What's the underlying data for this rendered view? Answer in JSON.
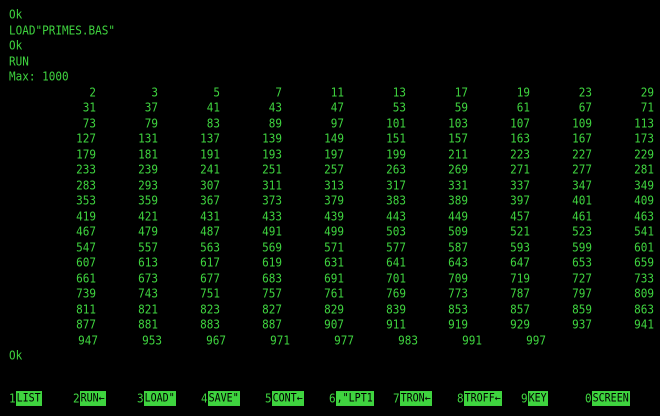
{
  "session": {
    "lines_before": [
      "Ok",
      "LOAD\"PRIMES.BAS\"",
      "Ok",
      "RUN",
      "Max: 1000"
    ],
    "lines_after": [
      "Ok"
    ]
  },
  "primes_table": [
    [
      "2",
      "3",
      "5",
      "7",
      "11",
      "13",
      "17",
      "19",
      "23",
      "29"
    ],
    [
      "31",
      "37",
      "41",
      "43",
      "47",
      "53",
      "59",
      "61",
      "67",
      "71"
    ],
    [
      "73",
      "79",
      "83",
      "89",
      "97",
      "101",
      "103",
      "107",
      "109",
      "113"
    ],
    [
      "127",
      "131",
      "137",
      "139",
      "149",
      "151",
      "157",
      "163",
      "167",
      "173"
    ],
    [
      "179",
      "181",
      "191",
      "193",
      "197",
      "199",
      "211",
      "223",
      "227",
      "229"
    ],
    [
      "233",
      "239",
      "241",
      "251",
      "257",
      "263",
      "269",
      "271",
      "277",
      "281"
    ],
    [
      "283",
      "293",
      "307",
      "311",
      "313",
      "317",
      "331",
      "337",
      "347",
      "349"
    ],
    [
      "353",
      "359",
      "367",
      "373",
      "379",
      "383",
      "389",
      "397",
      "401",
      "409"
    ],
    [
      "419",
      "421",
      "431",
      "433",
      "439",
      "443",
      "449",
      "457",
      "461",
      "463"
    ],
    [
      "467",
      "479",
      "487",
      "491",
      "499",
      "503",
      "509",
      "521",
      "523",
      "541"
    ],
    [
      "547",
      "557",
      "563",
      "569",
      "571",
      "577",
      "587",
      "593",
      "599",
      "601"
    ],
    [
      "607",
      "613",
      "617",
      "619",
      "631",
      "641",
      "643",
      "647",
      "653",
      "659"
    ],
    [
      "661",
      "673",
      "677",
      "683",
      "691",
      "701",
      "709",
      "719",
      "727",
      "733"
    ],
    [
      "739",
      "743",
      "751",
      "757",
      "761",
      "769",
      "773",
      "787",
      "797",
      "809"
    ],
    [
      "811",
      "821",
      "823",
      "827",
      "829",
      "839",
      "853",
      "857",
      "859",
      "863"
    ],
    [
      "877",
      "881",
      "883",
      "887",
      "907",
      "911",
      "919",
      "929",
      "937",
      "941"
    ],
    [
      "947",
      "953",
      "967",
      "971",
      "977",
      "983",
      "991",
      "997"
    ]
  ],
  "function_keys": [
    {
      "num": "1",
      "label": "LIST"
    },
    {
      "num": "2",
      "label": "RUN←"
    },
    {
      "num": "3",
      "label": "LOAD\""
    },
    {
      "num": "4",
      "label": "SAVE\""
    },
    {
      "num": "5",
      "label": "CONT←"
    },
    {
      "num": "6",
      "label": ",\"LPT1"
    },
    {
      "num": "7",
      "label": "TRON←"
    },
    {
      "num": "8",
      "label": "TROFF←"
    },
    {
      "num": "9",
      "label": "KEY"
    },
    {
      "num": "0",
      "label": "SCREEN"
    }
  ],
  "colors": {
    "foreground": "#3fd43f",
    "background": "#000000"
  }
}
